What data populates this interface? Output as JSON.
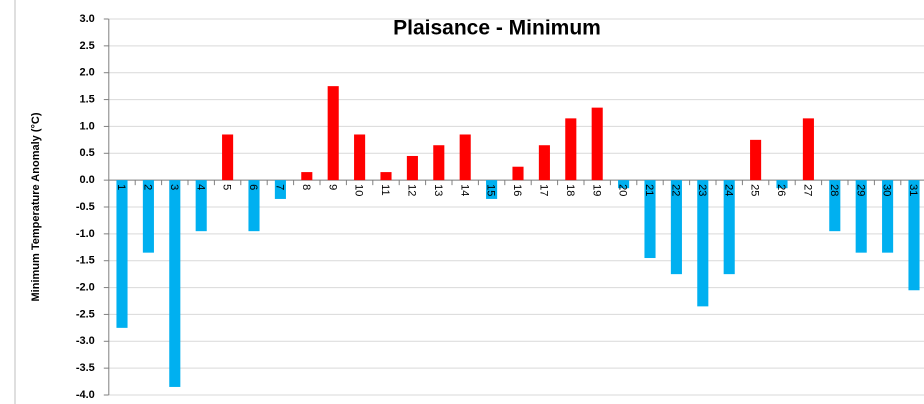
{
  "chart_data": {
    "type": "bar",
    "title": "Plaisance - Minimum",
    "y_label": "Minimum Temperature Anomaly (°C)",
    "categories": [
      "1",
      "2",
      "3",
      "4",
      "5",
      "6",
      "7",
      "8",
      "9",
      "10",
      "11",
      "12",
      "13",
      "14",
      "15",
      "16",
      "17",
      "18",
      "19",
      "20",
      "21",
      "22",
      "23",
      "24",
      "25",
      "26",
      "27",
      "28",
      "29",
      "30",
      "31"
    ],
    "values": [
      -2.75,
      -1.35,
      -3.85,
      -0.95,
      0.85,
      -0.95,
      -0.35,
      0.15,
      1.75,
      0.85,
      0.15,
      0.45,
      0.65,
      0.85,
      -0.35,
      0.25,
      0.65,
      1.15,
      1.35,
      -0.15,
      -1.45,
      -1.75,
      -2.35,
      -1.75,
      0.75,
      -0.15,
      1.15,
      -0.95,
      -1.35,
      -1.35,
      -2.05
    ],
    "positive_color": "#ff0000",
    "negative_color": "#00b0f0",
    "ylim": [
      -4,
      3
    ],
    "yticks": [
      {
        "value": 3,
        "label": "3.0"
      },
      2.5,
      {
        "value": 2,
        "label": "2.0"
      },
      1.5,
      {
        "value": 1,
        "label": "1.0"
      },
      0.5,
      {
        "value": 0,
        "label": "0.0"
      },
      -0.5,
      {
        "value": -1,
        "label": "-1.0"
      },
      -1.5,
      {
        "value": -2,
        "label": "-2.0"
      },
      -2.5,
      {
        "value": -3,
        "label": "-3.0"
      },
      -3.5,
      {
        "value": -4,
        "label": "-4.0"
      }
    ],
    "grid": true
  }
}
